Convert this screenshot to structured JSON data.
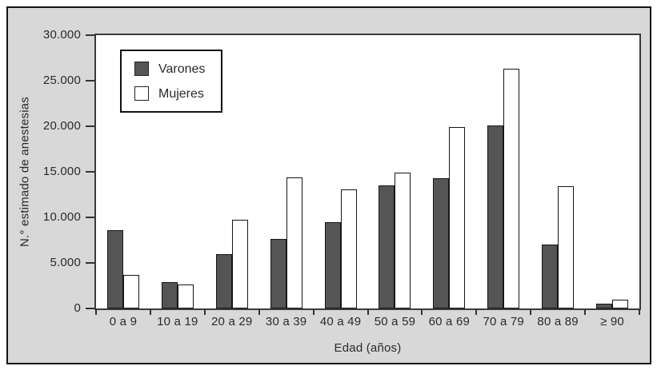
{
  "chart_data": {
    "type": "bar",
    "title": "",
    "xlabel": "Edad (años)",
    "ylabel": "N.° estimado de anestesias",
    "categories": [
      "0 a 9",
      "10 a 19",
      "20 a 29",
      "30 a 39",
      "40 a 49",
      "50 a 59",
      "60 a 69",
      "70 a 79",
      "80 a 89",
      "≥ 90"
    ],
    "series": [
      {
        "name": "Varones",
        "color": "#555555",
        "values": [
          8600,
          2900,
          6000,
          7600,
          9500,
          13500,
          14300,
          20100,
          7000,
          500
        ]
      },
      {
        "name": "Mujeres",
        "color": "#ffffff",
        "values": [
          3700,
          2600,
          9700,
          14400,
          13100,
          14900,
          19900,
          26300,
          13400,
          1000
        ]
      }
    ],
    "ylim": [
      0,
      30000
    ],
    "yticks": [
      0,
      5000,
      10000,
      15000,
      20000,
      25000,
      30000
    ],
    "ytick_labels": [
      "0",
      "5.000",
      "10.000",
      "15.000",
      "20.000",
      "25.000",
      "30.000"
    ],
    "legend_position": "upper-left",
    "grid": false
  },
  "colors": {
    "panel_bg": "#d8d8d8",
    "frame_border": "#141414",
    "plot_border": "#3a3a3a",
    "bar_dark": "#555555",
    "bar_light": "#ffffff",
    "bar_outline": "#161616",
    "text": "#2a2a2a"
  }
}
